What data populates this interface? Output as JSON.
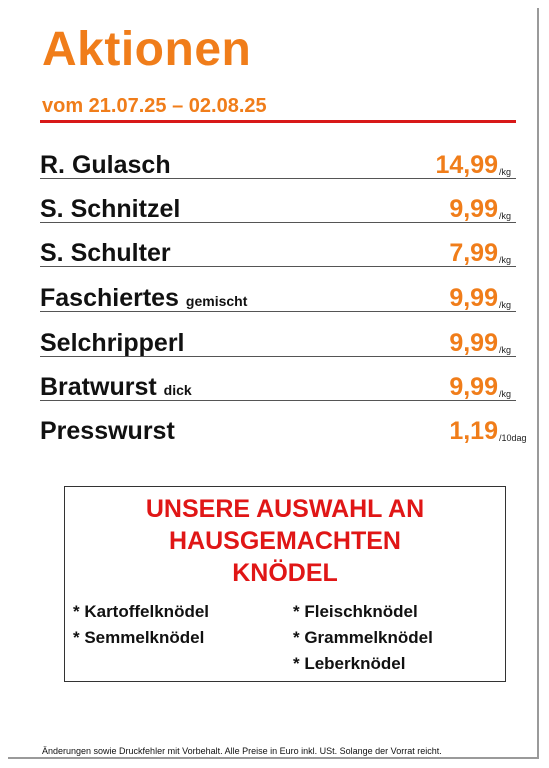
{
  "header": {
    "title": "Aktionen",
    "date_range": "vom 21.07.25 – 02.08.25"
  },
  "products": [
    {
      "name": "R. Gulasch",
      "modifier": "",
      "price": "14,99",
      "unit": "/kg"
    },
    {
      "name": "S. Schnitzel",
      "modifier": "",
      "price": "9,99",
      "unit": "/kg"
    },
    {
      "name": "S. Schulter",
      "modifier": "",
      "price": "7,99",
      "unit": "/kg"
    },
    {
      "name": "Faschiertes",
      "modifier": "gemischt",
      "price": "9,99",
      "unit": "/kg"
    },
    {
      "name": "Selchripperl",
      "modifier": "",
      "price": "9,99",
      "unit": "/kg"
    },
    {
      "name": "Bratwurst",
      "modifier": "dick",
      "price": "9,99",
      "unit": "/kg"
    },
    {
      "name": "Presswurst",
      "modifier": "",
      "price": "1,19",
      "unit": "/10dag"
    }
  ],
  "knoedel_box": {
    "heading_lines": [
      "UNSERE AUSWAHL AN",
      "HAUSGEMACHTEN",
      "KNÖDEL"
    ],
    "column_left": [
      "* Kartoffelknödel",
      "* Semmelknödel"
    ],
    "column_right": [
      "* Fleischknödel",
      "* Grammelknödel",
      "* Leberknödel"
    ]
  },
  "footer": {
    "disclaimer": "Änderungen sowie Druckfehler mit Vorbehalt. Alle Preise in Euro inkl. USt. Solange der Vorrat reicht."
  },
  "colors": {
    "accent_orange": "#f07d1a",
    "accent_red": "#e01616",
    "text": "#111111"
  }
}
